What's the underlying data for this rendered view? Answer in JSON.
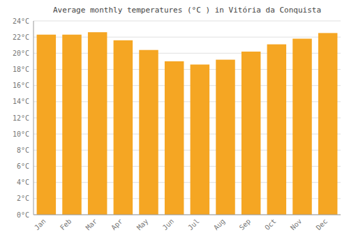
{
  "chart_data": {
    "type": "bar",
    "title": "Average monthly temperatures (°C ) in Vitória da Conquista",
    "categories": [
      "Jan",
      "Feb",
      "Mar",
      "Apr",
      "May",
      "Jun",
      "Jul",
      "Aug",
      "Sep",
      "Oct",
      "Nov",
      "Dec"
    ],
    "values": [
      22.3,
      22.3,
      22.6,
      21.6,
      20.4,
      19.0,
      18.6,
      19.2,
      20.2,
      21.1,
      21.8,
      22.5
    ],
    "color": "#F5A623",
    "ylim": [
      0,
      24
    ],
    "yticks": [
      {
        "value": 0,
        "label": "0°C"
      },
      {
        "value": 2,
        "label": "2°C"
      },
      {
        "value": 4,
        "label": "4°C"
      },
      {
        "value": 6,
        "label": "6°C"
      },
      {
        "value": 8,
        "label": "8°C"
      },
      {
        "value": 10,
        "label": "10°C"
      },
      {
        "value": 12,
        "label": "12°C"
      },
      {
        "value": 14,
        "label": "14°C"
      },
      {
        "value": 16,
        "label": "16°C"
      },
      {
        "value": 18,
        "label": "18°C"
      },
      {
        "value": 20,
        "label": "20°C"
      },
      {
        "value": 22,
        "label": "22°C"
      },
      {
        "value": 24,
        "label": "24°C"
      }
    ],
    "grid": true
  }
}
